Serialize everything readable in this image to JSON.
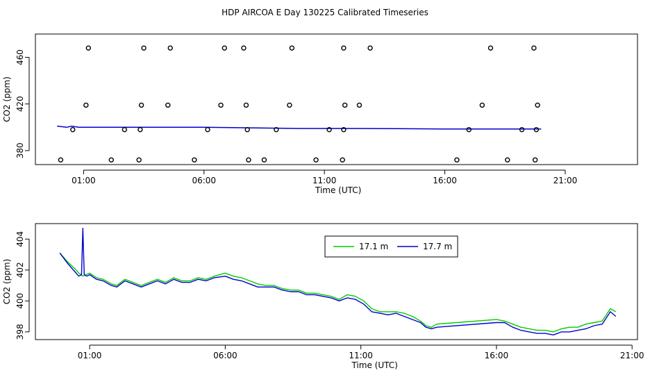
{
  "title": "HDP AIRCOA E  Day 130225  Calibrated Timeseries",
  "colors": {
    "series_17_1": "#00cc00",
    "series_17_7": "#0000cc",
    "axis": "#000000",
    "background": "#ffffff"
  },
  "chart_data": [
    {
      "type": "scatter",
      "xlabel": "Time (UTC)",
      "ylabel": "CO2 (ppm)",
      "xlim": [
        -1.0,
        24.0
      ],
      "ylim": [
        368,
        480
      ],
      "x_ticks": [
        1,
        6,
        11,
        16,
        21
      ],
      "x_tick_labels": [
        "01:00",
        "06:00",
        "11:00",
        "16:00",
        "21:00"
      ],
      "y_ticks": [
        380,
        420,
        460
      ],
      "y_tick_labels": [
        "380",
        "420",
        "460"
      ],
      "outlier_points": [
        {
          "x": 0.05,
          "y": 372
        },
        {
          "x": 0.55,
          "y": 398
        },
        {
          "x": 1.1,
          "y": 419
        },
        {
          "x": 2.15,
          "y": 372
        },
        {
          "x": 2.7,
          "y": 398
        },
        {
          "x": 3.3,
          "y": 372
        },
        {
          "x": 3.35,
          "y": 398
        },
        {
          "x": 3.4,
          "y": 419
        },
        {
          "x": 4.5,
          "y": 419
        },
        {
          "x": 5.6,
          "y": 372
        },
        {
          "x": 6.15,
          "y": 398
        },
        {
          "x": 6.7,
          "y": 419
        },
        {
          "x": 7.75,
          "y": 419
        },
        {
          "x": 7.8,
          "y": 398
        },
        {
          "x": 7.85,
          "y": 372
        },
        {
          "x": 8.5,
          "y": 372
        },
        {
          "x": 9.0,
          "y": 398
        },
        {
          "x": 9.55,
          "y": 419
        },
        {
          "x": 10.65,
          "y": 372
        },
        {
          "x": 11.2,
          "y": 398
        },
        {
          "x": 11.75,
          "y": 372
        },
        {
          "x": 11.8,
          "y": 398
        },
        {
          "x": 11.85,
          "y": 419
        },
        {
          "x": 12.45,
          "y": 419
        },
        {
          "x": 16.5,
          "y": 372
        },
        {
          "x": 17.0,
          "y": 398
        },
        {
          "x": 17.55,
          "y": 419
        },
        {
          "x": 18.6,
          "y": 372
        },
        {
          "x": 19.2,
          "y": 398
        },
        {
          "x": 19.75,
          "y": 372
        },
        {
          "x": 19.8,
          "y": 398
        },
        {
          "x": 19.85,
          "y": 419
        },
        {
          "x": 1.2,
          "y": 468
        },
        {
          "x": 3.5,
          "y": 468
        },
        {
          "x": 4.6,
          "y": 468
        },
        {
          "x": 6.85,
          "y": 468
        },
        {
          "x": 7.65,
          "y": 468
        },
        {
          "x": 9.65,
          "y": 468
        },
        {
          "x": 11.8,
          "y": 468
        },
        {
          "x": 12.9,
          "y": 468
        },
        {
          "x": 17.9,
          "y": 468
        },
        {
          "x": 19.7,
          "y": 468
        }
      ],
      "line": {
        "x": [
          -0.1,
          0.3,
          0.5,
          0.8,
          2,
          4,
          6,
          8,
          10,
          12,
          14,
          16,
          18,
          20.0
        ],
        "y": [
          401,
          400,
          401,
          400,
          400,
          400,
          400,
          399.5,
          399,
          399,
          398.8,
          398.5,
          398.5,
          398.5
        ]
      }
    },
    {
      "type": "line",
      "xlabel": "Time (UTC)",
      "ylabel": "CO2 (ppm)",
      "xlim": [
        -1.0,
        21.2
      ],
      "ylim": [
        397.5,
        405.0
      ],
      "x_ticks": [
        1,
        6,
        11,
        16,
        21
      ],
      "x_tick_labels": [
        "01:00",
        "06:00",
        "11:00",
        "16:00",
        "21:00"
      ],
      "y_ticks": [
        398,
        400,
        402,
        404
      ],
      "y_tick_labels": [
        "398",
        "400",
        "402",
        "404"
      ],
      "legend": {
        "placement": "top-center",
        "entries": [
          "17.1 m",
          "17.7 m"
        ]
      },
      "series": [
        {
          "name": "17.1 m",
          "color": "#00cc00",
          "x": [
            -0.1,
            0.2,
            0.45,
            0.6,
            0.75,
            1.0,
            1.25,
            1.5,
            1.8,
            2.0,
            2.3,
            2.6,
            2.9,
            3.2,
            3.5,
            3.8,
            4.1,
            4.4,
            4.7,
            5.0,
            5.3,
            5.6,
            6.0,
            6.3,
            6.6,
            6.9,
            7.2,
            7.5,
            7.8,
            8.1,
            8.4,
            8.7,
            9.0,
            9.3,
            9.6,
            9.9,
            10.2,
            10.5,
            10.8,
            11.1,
            11.4,
            11.7,
            12.0,
            12.3,
            12.6,
            12.9,
            13.2,
            13.4,
            13.6,
            13.8,
            16.0,
            16.3,
            16.6,
            16.9,
            17.2,
            17.5,
            17.8,
            18.1,
            18.4,
            18.7,
            19.0,
            19.3,
            19.6,
            19.9,
            20.2,
            20.4
          ],
          "y": [
            403.1,
            402.5,
            402.1,
            401.8,
            401.6,
            401.8,
            401.5,
            401.4,
            401.1,
            401.0,
            401.4,
            401.2,
            401.0,
            401.2,
            401.4,
            401.2,
            401.5,
            401.3,
            401.3,
            401.5,
            401.4,
            401.6,
            401.8,
            401.6,
            401.5,
            401.3,
            401.1,
            401.0,
            401.0,
            400.8,
            400.7,
            400.7,
            400.5,
            400.5,
            400.4,
            400.3,
            400.1,
            400.4,
            400.3,
            400.0,
            399.5,
            399.3,
            399.3,
            399.3,
            399.2,
            399.0,
            398.7,
            398.4,
            398.3,
            398.5,
            398.8,
            398.7,
            398.5,
            398.3,
            398.2,
            398.1,
            398.1,
            398.0,
            398.2,
            398.3,
            398.3,
            398.5,
            398.6,
            398.7,
            399.5,
            399.3
          ]
        },
        {
          "name": "17.7 m",
          "color": "#0000cc",
          "x": [
            -0.1,
            0.2,
            0.45,
            0.6,
            0.7,
            0.75,
            0.8,
            0.9,
            1.0,
            1.25,
            1.5,
            1.8,
            2.0,
            2.3,
            2.6,
            2.9,
            3.2,
            3.5,
            3.8,
            4.1,
            4.4,
            4.7,
            5.0,
            5.3,
            5.6,
            6.0,
            6.3,
            6.6,
            6.9,
            7.2,
            7.5,
            7.8,
            8.1,
            8.4,
            8.7,
            9.0,
            9.3,
            9.6,
            9.9,
            10.2,
            10.5,
            10.8,
            11.1,
            11.4,
            11.7,
            12.0,
            12.3,
            12.6,
            12.9,
            13.2,
            13.4,
            13.6,
            13.8,
            16.0,
            16.3,
            16.6,
            16.9,
            17.2,
            17.5,
            17.8,
            18.1,
            18.4,
            18.7,
            19.0,
            19.3,
            19.6,
            19.9,
            20.2,
            20.4
          ],
          "y": [
            403.1,
            402.4,
            401.9,
            401.6,
            401.7,
            404.7,
            401.7,
            401.6,
            401.7,
            401.4,
            401.3,
            401.0,
            400.9,
            401.3,
            401.1,
            400.9,
            401.1,
            401.3,
            401.1,
            401.4,
            401.2,
            401.2,
            401.4,
            401.3,
            401.5,
            401.6,
            401.4,
            401.3,
            401.1,
            400.9,
            400.9,
            400.9,
            400.7,
            400.6,
            400.6,
            400.4,
            400.4,
            400.3,
            400.2,
            400.0,
            400.2,
            400.1,
            399.8,
            399.3,
            399.2,
            399.1,
            399.2,
            399.0,
            398.8,
            398.6,
            398.3,
            398.2,
            398.3,
            398.6,
            398.6,
            398.3,
            398.1,
            398.0,
            397.9,
            397.9,
            397.8,
            398.0,
            398.0,
            398.1,
            398.2,
            398.4,
            398.5,
            399.3,
            399.0
          ]
        }
      ]
    }
  ]
}
